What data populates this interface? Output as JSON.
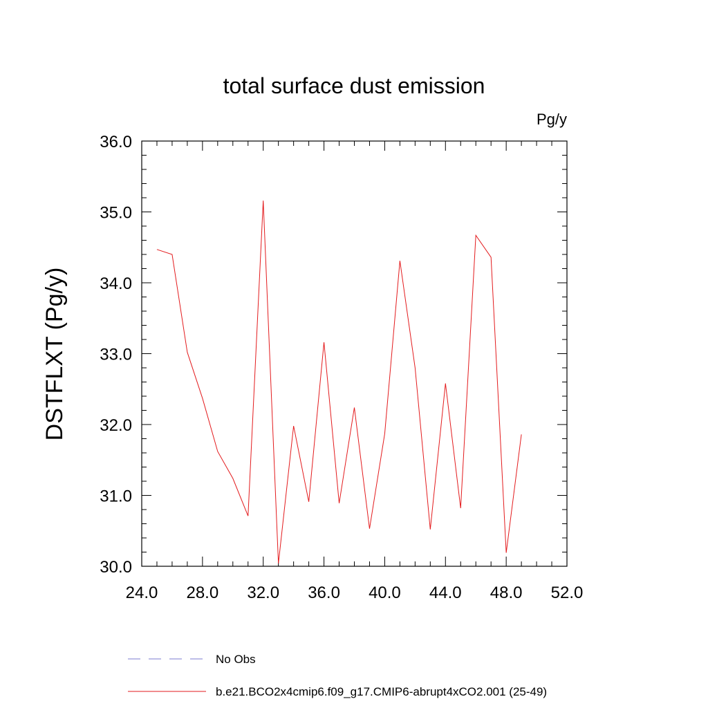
{
  "chart_data": {
    "type": "line",
    "title": "total surface dust emission",
    "units_label": "Pg/y",
    "ylabel": "DSTFLXT  (Pg/y)",
    "xlabel": "",
    "xlim": [
      24.0,
      52.0
    ],
    "ylim": [
      30.0,
      36.0
    ],
    "x_ticks": [
      24.0,
      28.0,
      32.0,
      36.0,
      40.0,
      44.0,
      48.0,
      52.0
    ],
    "x_tick_labels": [
      "24.0",
      "28.0",
      "32.0",
      "36.0",
      "40.0",
      "44.0",
      "48.0",
      "52.0"
    ],
    "y_ticks": [
      30.0,
      31.0,
      32.0,
      33.0,
      34.0,
      35.0,
      36.0
    ],
    "y_tick_labels": [
      "30.0",
      "31.0",
      "32.0",
      "33.0",
      "34.0",
      "35.0",
      "36.0"
    ],
    "grid": false,
    "legend_position": "bottom",
    "series": [
      {
        "name": "No Obs",
        "color": "#7b7bd0",
        "dash": "dashed",
        "x": [],
        "y": []
      },
      {
        "name": "b.e21.BCO2x4cmip6.f09_g17.CMIP6-abrupt4xCO2.001 (25-49)",
        "color": "#e31a1c",
        "dash": "solid",
        "x": [
          25,
          26,
          27,
          28,
          29,
          30,
          31,
          32,
          33,
          34,
          35,
          36,
          37,
          38,
          39,
          40,
          41,
          42,
          43,
          44,
          45,
          46,
          47,
          48,
          49
        ],
        "y": [
          34.47,
          34.4,
          33.02,
          32.37,
          31.62,
          31.24,
          30.71,
          35.16,
          30.04,
          31.98,
          30.91,
          33.16,
          30.89,
          32.24,
          30.53,
          31.87,
          34.31,
          32.8,
          30.52,
          32.58,
          30.82,
          34.67,
          34.36,
          30.19,
          31.86
        ]
      }
    ]
  }
}
